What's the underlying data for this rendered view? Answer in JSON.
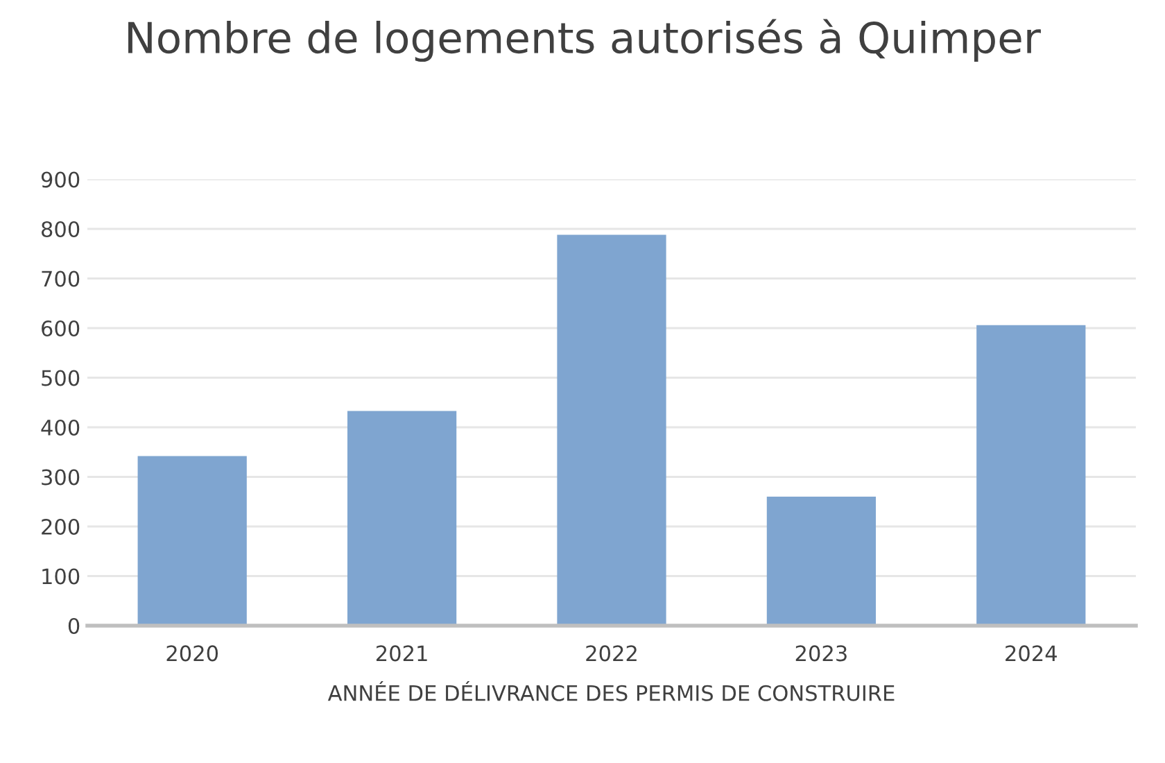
{
  "chart_data": {
    "type": "bar",
    "title": "Nombre de logements autorisés à Quimper",
    "xlabel": "ANNÉE DE DÉLIVRANCE DES PERMIS DE CONSTRUIRE",
    "categories": [
      "2020",
      "2021",
      "2022",
      "2023",
      "2024"
    ],
    "values": [
      342,
      433,
      788,
      260,
      606
    ],
    "color": "#7fa5d0",
    "ylim": [
      0,
      900
    ],
    "yticks": [
      0,
      100,
      200,
      300,
      400,
      500,
      600,
      700,
      800,
      900
    ],
    "grid": "y"
  }
}
